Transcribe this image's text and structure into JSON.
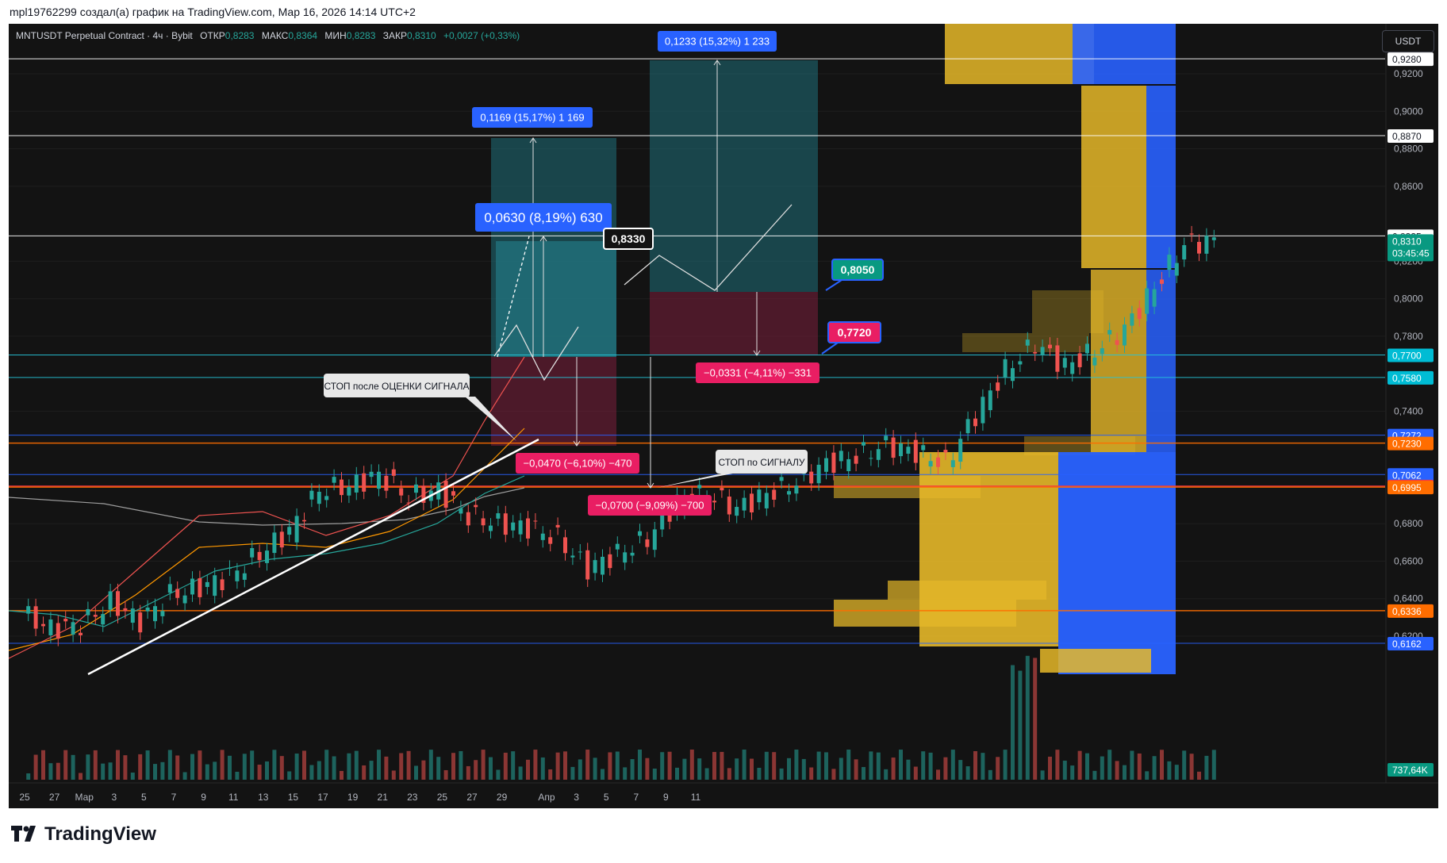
{
  "header": {
    "caption": "mpl19762299 создал(а) график на TradingView.com, Мар 16, 2026 14:14 UTC+2"
  },
  "legend": {
    "symbol": "MNTUSDT Perpetual Contract · 4ч · Bybit",
    "open_label": "ОТКР",
    "open": "0,8283",
    "high_label": "МАКС",
    "high": "0,8364",
    "low_label": "МИН",
    "low": "0,8283",
    "close_label": "ЗАКР",
    "close": "0,8310",
    "change": "+0,0027 (+0,33%)"
  },
  "currency": "USDT",
  "brand": "TradingView",
  "colors": {
    "up": "#26a69a",
    "down": "#ef5350",
    "background": "#131313",
    "axis_text": "#b2b5be",
    "label_red": "#e91e63",
    "label_blue": "#2962ff",
    "volume_profile_gold": "#e6b829",
    "volume_profile_blue": "#2962ff"
  },
  "chart_data": {
    "type": "candlestick",
    "instrument": "MNTUSDT Perpetual Contract",
    "timeframe": "4ч",
    "exchange": "Bybit",
    "ylim": [
      0.6,
      0.936
    ],
    "y_ticks": [
      "0,6200",
      "0,6400",
      "0,6600",
      "0,6800",
      "0,7400",
      "0,7800",
      "0,8000",
      "0,8200",
      "0,8600",
      "0,8800",
      "0,9000",
      "0,9200"
    ],
    "x_ticks": [
      "25",
      "27",
      "Мар",
      "3",
      "5",
      "7",
      "9",
      "11",
      "13",
      "15",
      "17",
      "19",
      "21",
      "23",
      "25",
      "27",
      "29",
      "Апр",
      "3",
      "5",
      "7",
      "9",
      "11"
    ],
    "x_tick_day_index": [
      0,
      2,
      4,
      6,
      8,
      10,
      12,
      14,
      16,
      18,
      20,
      22,
      24,
      26,
      28,
      30,
      32,
      35,
      37,
      39,
      41,
      43,
      45
    ],
    "price_path": [
      [
        0,
        0.632
      ],
      [
        1,
        0.624
      ],
      [
        2,
        0.626
      ],
      [
        3,
        0.638
      ],
      [
        4,
        0.628
      ],
      [
        5,
        0.642
      ],
      [
        6,
        0.646
      ],
      [
        7,
        0.652
      ],
      [
        8,
        0.664
      ],
      [
        9,
        0.676
      ],
      [
        10,
        0.698
      ],
      [
        11,
        0.7
      ],
      [
        12,
        0.706
      ],
      [
        13,
        0.694
      ],
      [
        14,
        0.698
      ],
      [
        15,
        0.684
      ],
      [
        16,
        0.68
      ],
      [
        17,
        0.678
      ],
      [
        18,
        0.672
      ],
      [
        19,
        0.656
      ],
      [
        20,
        0.664
      ],
      [
        21,
        0.672
      ],
      [
        22,
        0.692
      ],
      [
        23,
        0.696
      ],
      [
        24,
        0.688
      ],
      [
        25,
        0.696
      ],
      [
        26,
        0.702
      ],
      [
        27,
        0.712
      ],
      [
        28,
        0.716
      ],
      [
        29,
        0.722
      ],
      [
        30,
        0.718
      ],
      [
        31,
        0.712
      ],
      [
        32,
        0.738
      ],
      [
        33,
        0.762
      ],
      [
        34,
        0.776
      ],
      [
        35,
        0.764
      ],
      [
        36,
        0.772
      ],
      [
        37,
        0.784
      ],
      [
        38,
        0.806
      ],
      [
        39,
        0.829
      ],
      [
        40,
        0.831
      ]
    ],
    "price_path_day_scale": 0.4,
    "horizontal_levels": [
      {
        "price": "0,9280",
        "color": "#ffffff"
      },
      {
        "price": "0,8870",
        "color": "#ffffff"
      },
      {
        "price": "0,8335",
        "color": "#ffffff"
      },
      {
        "price": "0,7700",
        "color": "#26c6da"
      },
      {
        "price": "0,7580",
        "color": "#26c6da"
      },
      {
        "price": "0,7272",
        "color": "#2962ff"
      },
      {
        "price": "0,7230",
        "color": "#ff6d00"
      },
      {
        "price": "0,7062",
        "color": "#2962ff"
      },
      {
        "price": "0,7000",
        "color": "#f23645"
      },
      {
        "price": "0,6995",
        "color": "#ff6d00"
      },
      {
        "price": "0,6336",
        "color": "#ff6d00"
      },
      {
        "price": "0,6162",
        "color": "#2962ff"
      }
    ],
    "price_labels": [
      {
        "text": "0,9280",
        "bg": "#ffffff",
        "fg": "#131722"
      },
      {
        "text": "0,8870",
        "bg": "#ffffff",
        "fg": "#131722"
      },
      {
        "text": "0,8335",
        "bg": "#ffffff",
        "fg": "#131722"
      },
      {
        "text": "0,8310",
        "bg": "#089981",
        "fg": "#ffffff"
      },
      {
        "text": "0,7700",
        "bg": "#00bcd4",
        "fg": "#ffffff"
      },
      {
        "text": "0,7580",
        "bg": "#00bcd4",
        "fg": "#ffffff"
      },
      {
        "text": "0,7272",
        "bg": "#2962ff",
        "fg": "#ffffff"
      },
      {
        "text": "0,7230",
        "bg": "#ff6d00",
        "fg": "#ffffff"
      },
      {
        "text": "0,7062",
        "bg": "#2962ff",
        "fg": "#ffffff"
      },
      {
        "text": "0,7000",
        "bg": "#f23645",
        "fg": "#ffffff"
      },
      {
        "text": "0,6995",
        "bg": "#ff6d00",
        "fg": "#ffffff"
      },
      {
        "text": "0,6336",
        "bg": "#ff6d00",
        "fg": "#ffffff"
      },
      {
        "text": "0,6162",
        "bg": "#2962ff",
        "fg": "#ffffff"
      },
      {
        "text": "737,64K",
        "bg": "#089981",
        "fg": "#ffffff"
      }
    ],
    "countdown": "03:45:45",
    "measurements": [
      {
        "text": "0,1233 (15,32%) 1 233",
        "type": "gain"
      },
      {
        "text": "0,1169 (15,17%) 1 169",
        "type": "gain"
      },
      {
        "text": "0,0630 (8,19%) 630",
        "type": "gain"
      },
      {
        "text": "−0,0331 (−4,11%) −331",
        "type": "loss"
      },
      {
        "text": "−0,0470 (−6,10%) −470",
        "type": "loss"
      },
      {
        "text": "−0,0700 (−9,09%) −700",
        "type": "loss"
      }
    ],
    "callouts": [
      {
        "text": "0,8330",
        "style": "dark"
      },
      {
        "text": "0,8050",
        "style": "teal"
      },
      {
        "text": "0,7720",
        "style": "red"
      }
    ],
    "notes": [
      "СТОП после ОЦЕНКИ СИГНАЛА",
      "СТОП по СИГНАЛУ"
    ]
  }
}
